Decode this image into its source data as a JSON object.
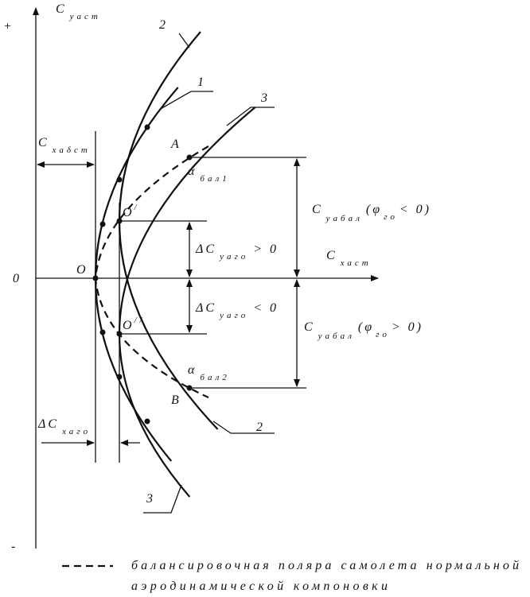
{
  "axes": {
    "plus": "+",
    "minus": "-",
    "zero": "0",
    "y_label": {
      "main": "C",
      "sub": "уаст"
    },
    "x_label": {
      "main": "C",
      "sub": "хаст"
    }
  },
  "curve_labels": [
    "2",
    "1",
    "3",
    "2",
    "3"
  ],
  "points": {
    "A": "A",
    "B": "B",
    "O": "O",
    "O1": {
      "main": "O",
      "mark": "/"
    },
    "O2": {
      "main": "O",
      "mark": "//"
    }
  },
  "alpha1": {
    "main": "α",
    "sub": "бал1"
  },
  "alpha2": {
    "main": "α",
    "sub": "бал2"
  },
  "cx_bal": {
    "main": "C",
    "sub": "хаδст"
  },
  "dcy_pos": {
    "main": "ΔC",
    "sub": "уаго",
    "tail": "> 0"
  },
  "dcy_neg": {
    "main": "ΔC",
    "sub": "уаго",
    "tail": "< 0"
  },
  "cy_bal_neg": {
    "main": "C",
    "sub": "уабал",
    "mid": "(φ",
    "sub2": "го",
    "tail": "< 0)"
  },
  "cy_bal_pos": {
    "main": "C",
    "sub": "уабал",
    "mid": "(φ",
    "sub2": "го",
    "tail": "> 0)"
  },
  "dcx": {
    "main": "ΔC",
    "sub": "хаго"
  },
  "legend": {
    "line1": "балансировочная поляра самолета нормальной",
    "line2": "аэродинамической компоновки"
  }
}
